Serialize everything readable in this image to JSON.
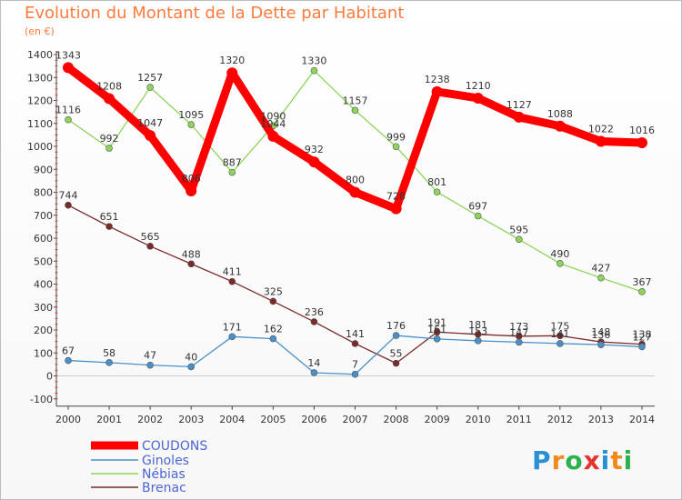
{
  "chart_data": {
    "type": "line",
    "title": "Evolution du Montant de la Dette par Habitant",
    "subtitle": "(en €)",
    "x": [
      2000,
      2001,
      2002,
      2003,
      2004,
      2005,
      2006,
      2007,
      2008,
      2009,
      2010,
      2011,
      2012,
      2013,
      2014
    ],
    "ylim": [
      -100,
      1400
    ],
    "yticks": [
      -100,
      0,
      100,
      200,
      300,
      400,
      500,
      600,
      700,
      800,
      900,
      1000,
      1100,
      1200,
      1300,
      1400
    ],
    "grid": false,
    "legend": "bottom-left",
    "series": [
      {
        "name": "COUDONS",
        "color": "#ff0000",
        "values": [
          1343,
          1208,
          1047,
          806,
          1320,
          1044,
          932,
          800,
          728,
          1238,
          1210,
          1127,
          1088,
          1022,
          1016
        ]
      },
      {
        "name": "Ginoles",
        "color": "#4a90c8",
        "values": [
          67,
          58,
          47,
          40,
          171,
          162,
          14,
          7,
          176,
          161,
          153,
          147,
          141,
          136,
          127
        ]
      },
      {
        "name": "Nébias",
        "color": "#8ed45a",
        "values": [
          1116,
          992,
          1257,
          1095,
          887,
          1090,
          1330,
          1157,
          999,
          801,
          697,
          595,
          490,
          427,
          367
        ]
      },
      {
        "name": "Brenac",
        "color": "#7a2a2a",
        "values": [
          744,
          651,
          565,
          488,
          411,
          325,
          236,
          141,
          55,
          191,
          181,
          173,
          175,
          148,
          138
        ]
      }
    ]
  },
  "logo": {
    "letters": [
      "P",
      "r",
      "o",
      "x",
      "i",
      "t",
      "i"
    ]
  }
}
